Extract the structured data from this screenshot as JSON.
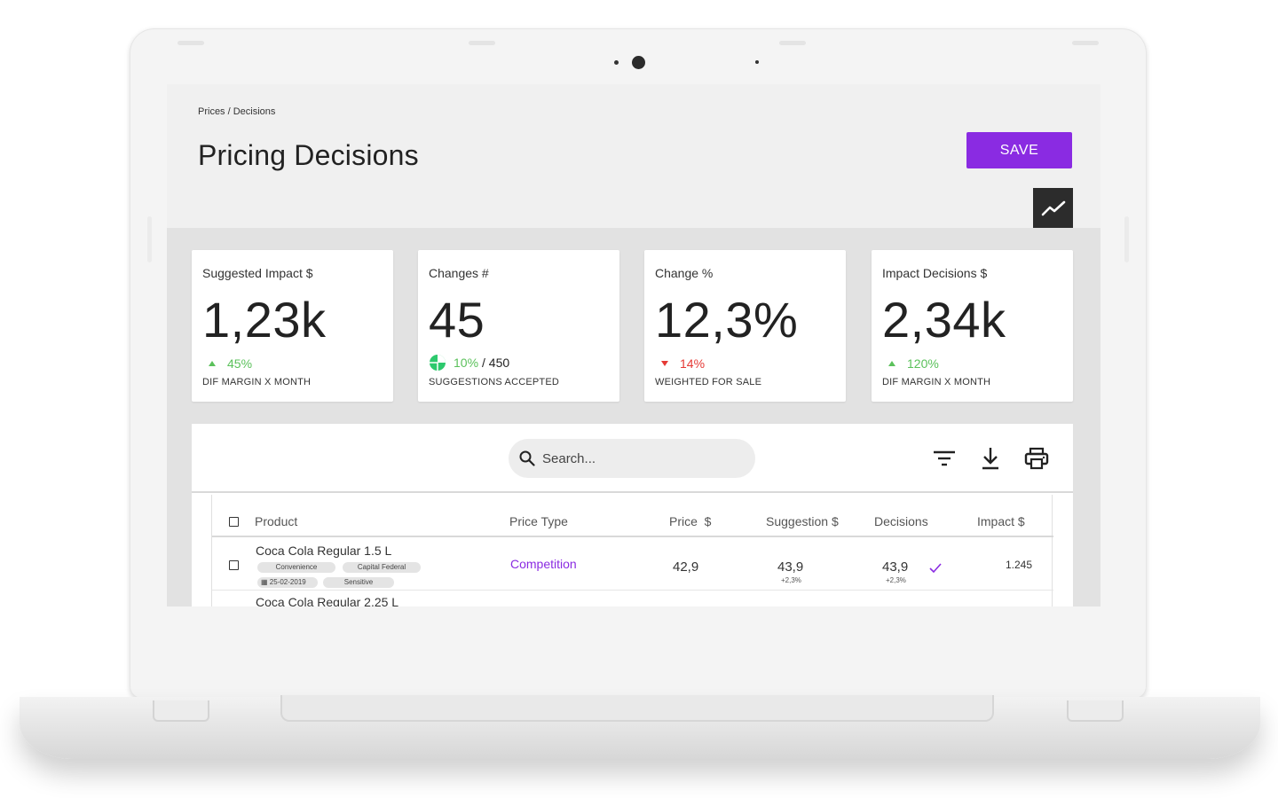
{
  "breadcrumb": "Prices / Decisions",
  "page_title": "Pricing Decisions",
  "save_label": "SAVE",
  "colors": {
    "accent": "#8a2be2",
    "positive": "#5bc15b",
    "negative": "#e53935",
    "dark_button": "#2c2c2c"
  },
  "cards": [
    {
      "title": "Suggested Impact $",
      "value": "1,23k",
      "delta": "45%",
      "direction": "up",
      "footer": "DIF MARGIN X MONTH"
    },
    {
      "title": "Changes #",
      "value": "45",
      "delta": "10%",
      "delta_suffix": "/ 450",
      "direction": "pie",
      "footer": "SUGGESTIONS ACCEPTED"
    },
    {
      "title": "Change %",
      "value": "12,3%",
      "delta": "14%",
      "direction": "down",
      "footer": "WEIGHTED FOR SALE"
    },
    {
      "title": "Impact Decisions $",
      "value": "2,34k",
      "delta": "120%",
      "direction": "up",
      "footer": "DIF MARGIN X MONTH"
    }
  ],
  "search": {
    "placeholder": "Search..."
  },
  "toolbar_icons": [
    "filter-icon",
    "download-icon",
    "print-icon"
  ],
  "table": {
    "columns": [
      "Product",
      "Price Type",
      "Price  $",
      "Suggestion $",
      "Decisions",
      "Impact $"
    ],
    "rows": [
      {
        "product": "Coca Cola Regular 1.5 L",
        "tags": [
          "Convenience",
          "Capital Federal"
        ],
        "date": "25-02-2019",
        "tag2": "Sensitive",
        "price_type": "Competition",
        "price": "42,9",
        "suggestion": "43,9",
        "suggestion_sub": "+2,3%",
        "decision": "43,9",
        "decision_sub": "+2,3%",
        "impact": "1.245"
      }
    ],
    "partial_row_product": "Coca Cola Regular 2.25 L"
  }
}
